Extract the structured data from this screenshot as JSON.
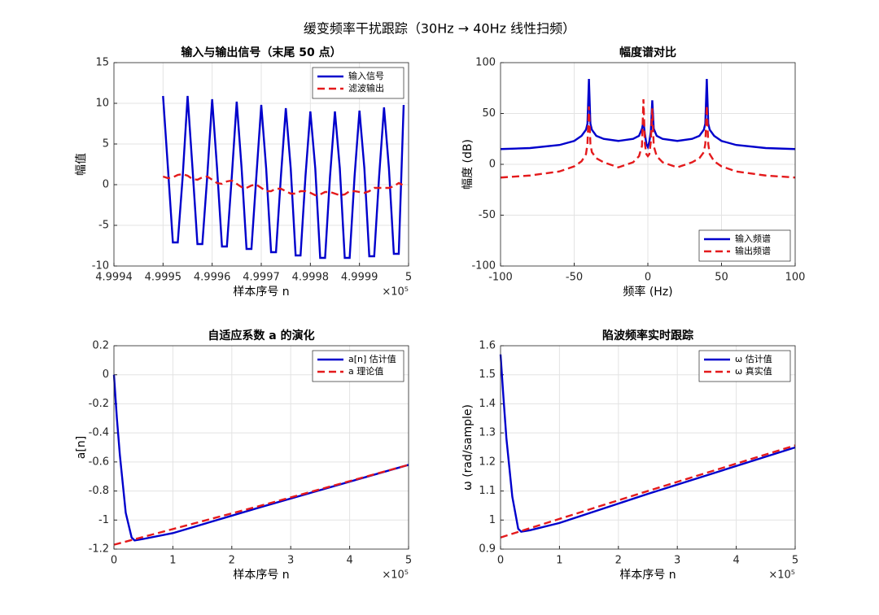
{
  "title": "缓变频率干扰跟踪（30Hz  → 40Hz  线性扫频）",
  "chart_data": [
    {
      "type": "line",
      "title": "输入与输出信号（末尾 50 点）",
      "x_label": "样本序号 n",
      "y_label": "幅值",
      "x_exponent": "×10⁵",
      "x": [
        499950,
        499951,
        499952,
        499953,
        499954,
        499955,
        499956,
        499957,
        499958,
        499959,
        499960,
        499961,
        499962,
        499963,
        499964,
        499965,
        499966,
        499967,
        499968,
        499969,
        499970,
        499971,
        499972,
        499973,
        499974,
        499975,
        499976,
        499977,
        499978,
        499979,
        499980,
        499981,
        499982,
        499983,
        499984,
        499985,
        499986,
        499987,
        499988,
        499989,
        499990,
        499991,
        499992,
        499993,
        499994,
        499995,
        499996,
        499997,
        499998,
        499999
      ],
      "series": [
        {
          "name": "输入信号",
          "color": "#0000cc",
          "style": "solid",
          "values": [
            10.9,
            2,
            -7.1,
            -7.1,
            1,
            10.9,
            2,
            -7.3,
            -7.3,
            1,
            10.5,
            2,
            -7.6,
            -7.6,
            1,
            10.2,
            2,
            -7.9,
            -7.9,
            1,
            9.8,
            2,
            -8.3,
            -8.3,
            1,
            9.4,
            2,
            -8.7,
            -8.7,
            1,
            9.0,
            2,
            -9.0,
            -9.0,
            1,
            9.0,
            2,
            -9.0,
            -9.0,
            1,
            9.1,
            2,
            -8.8,
            -8.8,
            1,
            9.5,
            2,
            -8.5,
            -8.5,
            9.8
          ]
        },
        {
          "name": "滤波输出",
          "color": "#e41a1c",
          "style": "dashed",
          "values": [
            1.0,
            0.8,
            0.9,
            1.2,
            1.3,
            1.1,
            0.7,
            0.6,
            0.9,
            1.0,
            0.6,
            0.2,
            0.1,
            0.4,
            0.5,
            0.1,
            -0.3,
            -0.4,
            -0.1,
            0.0,
            -0.4,
            -0.8,
            -0.8,
            -0.5,
            -0.5,
            -0.8,
            -1.1,
            -1.1,
            -0.8,
            -0.8,
            -1.0,
            -1.3,
            -1.2,
            -0.9,
            -0.9,
            -1.1,
            -1.3,
            -1.2,
            -0.8,
            -0.8,
            -0.9,
            -1.0,
            -0.8,
            -0.4,
            -0.4,
            -0.4,
            -0.4,
            -0.2,
            0.2,
            -0.1
          ]
        }
      ],
      "xlim": [
        499940,
        500000
      ],
      "xticks": [
        {
          "value": 499940,
          "label": "4.9994"
        },
        {
          "value": 499950,
          "label": "4.9995"
        },
        {
          "value": 499960,
          "label": "4.9996"
        },
        {
          "value": 499970,
          "label": "4.9997"
        },
        {
          "value": 499980,
          "label": "4.9998"
        },
        {
          "value": 499990,
          "label": "4.9999"
        },
        {
          "value": 500000,
          "label": "5"
        }
      ],
      "ylim": [
        -10,
        15
      ],
      "yticks": [
        -10,
        -5,
        0,
        5,
        10,
        15
      ],
      "grid": true,
      "legend": "upper right"
    },
    {
      "type": "line",
      "title": "幅度谱对比",
      "x_label": "频率 (Hz)",
      "y_label": "幅度 (dB)",
      "x": [
        -100,
        -80,
        -60,
        -50,
        -45,
        -42,
        -41,
        -40,
        -39,
        -38,
        -35,
        -30,
        -20,
        -10,
        -6,
        -4,
        -3,
        -2,
        -1,
        0,
        1,
        2,
        3,
        4,
        6,
        10,
        20,
        30,
        35,
        38,
        39,
        40,
        41,
        42,
        45,
        50,
        60,
        80,
        100
      ],
      "series": [
        {
          "name": "输入频谱",
          "color": "#0000cc",
          "style": "solid",
          "values": [
            15,
            16,
            19,
            23,
            28,
            34,
            40,
            84,
            40,
            34,
            28,
            25,
            23,
            25,
            28,
            35,
            42,
            30,
            20,
            17,
            22,
            32,
            63,
            35,
            28,
            25,
            23,
            25,
            28,
            34,
            40,
            84,
            40,
            34,
            28,
            23,
            19,
            16,
            15
          ]
        },
        {
          "name": "输出频谱",
          "color": "#e41a1c",
          "style": "dashed",
          "values": [
            -13,
            -11,
            -7,
            -2,
            3,
            10,
            20,
            57,
            20,
            12,
            6,
            2,
            -3,
            2,
            8,
            18,
            64,
            20,
            10,
            8,
            10,
            22,
            55,
            18,
            8,
            2,
            -3,
            2,
            6,
            12,
            20,
            58,
            20,
            10,
            3,
            -2,
            -7,
            -11,
            -13
          ]
        }
      ],
      "xlim": [
        -100,
        100
      ],
      "xticks": [
        -100,
        -50,
        0,
        50,
        100
      ],
      "ylim": [
        -100,
        100
      ],
      "yticks": [
        -100,
        -50,
        0,
        50,
        100
      ],
      "grid": true,
      "legend": "lower right"
    },
    {
      "type": "line",
      "title": "自适应系数 a 的演化",
      "x_label": "样本序号 n",
      "y_label": "a[n]",
      "x_exponent": "×10⁵",
      "series": [
        {
          "name": "a[n] 估计值",
          "color": "#0000cc",
          "style": "solid",
          "x": [
            0,
            5000,
            10000,
            20000,
            30000,
            35000,
            50000,
            100000,
            250000,
            500000
          ],
          "values": [
            0,
            -0.3,
            -0.55,
            -0.95,
            -1.12,
            -1.14,
            -1.13,
            -1.09,
            -0.91,
            -0.62
          ]
        },
        {
          "name": "a 理论值",
          "color": "#e41a1c",
          "style": "dashed",
          "x": [
            0,
            250000,
            500000
          ],
          "values": [
            -1.17,
            -0.9,
            -0.62
          ]
        }
      ],
      "xlim": [
        0,
        500000
      ],
      "xticks": [
        {
          "value": 0,
          "label": "0"
        },
        {
          "value": 100000,
          "label": "1"
        },
        {
          "value": 200000,
          "label": "2"
        },
        {
          "value": 300000,
          "label": "3"
        },
        {
          "value": 400000,
          "label": "4"
        },
        {
          "value": 500000,
          "label": "5"
        }
      ],
      "ylim": [
        -1.2,
        0.2
      ],
      "yticks": [
        -1.2,
        -1,
        -0.8,
        -0.6,
        -0.4,
        -0.2,
        0,
        0.2
      ],
      "grid": true,
      "legend": "upper right"
    },
    {
      "type": "line",
      "title": "陷波频率实时跟踪",
      "x_label": "样本序号 n",
      "y_label": "ω (rad/sample)",
      "x_exponent": "×10⁵",
      "series": [
        {
          "name": "ω 估计值",
          "color": "#0000cc",
          "style": "solid",
          "x": [
            0,
            5000,
            10000,
            20000,
            30000,
            35000,
            50000,
            100000,
            250000,
            500000
          ],
          "values": [
            1.57,
            1.42,
            1.28,
            1.08,
            0.97,
            0.96,
            0.965,
            0.99,
            1.09,
            1.25
          ]
        },
        {
          "name": "ω 真实值",
          "color": "#e41a1c",
          "style": "dashed",
          "x": [
            0,
            250000,
            500000
          ],
          "values": [
            0.94,
            1.1,
            1.257
          ]
        }
      ],
      "xlim": [
        0,
        500000
      ],
      "xticks": [
        {
          "value": 0,
          "label": "0"
        },
        {
          "value": 100000,
          "label": "1"
        },
        {
          "value": 200000,
          "label": "2"
        },
        {
          "value": 300000,
          "label": "3"
        },
        {
          "value": 400000,
          "label": "4"
        },
        {
          "value": 500000,
          "label": "5"
        }
      ],
      "ylim": [
        0.9,
        1.6
      ],
      "yticks": [
        0.9,
        1,
        1.1,
        1.2,
        1.3,
        1.4,
        1.5,
        1.6
      ],
      "grid": true,
      "legend": "upper right"
    }
  ]
}
